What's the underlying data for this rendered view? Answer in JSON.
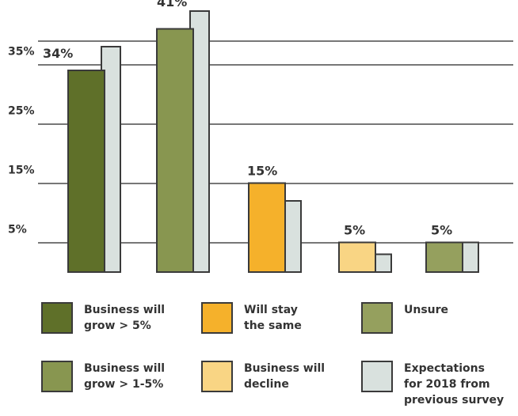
{
  "colors": {
    "grow_gt5": "#5f7029",
    "grow_1_5": "#889650",
    "same": "#f5b12b",
    "decline": "#f9d584",
    "unsure": "#95a05e",
    "previous": "#d9e1de",
    "outline": "#3a3a3a",
    "gridline": "#4a4a4a"
  },
  "chart_data": {
    "type": "bar",
    "yticks": [
      "35%",
      "25%",
      "15%",
      "5%"
    ],
    "ytick_values": [
      35,
      25,
      15,
      5
    ],
    "ylim": [
      0,
      46
    ],
    "grid": true,
    "groups": [
      {
        "name": "Business will grow > 5%",
        "current": 34,
        "previous": 38,
        "label": "34%",
        "color_key": "grow_gt5"
      },
      {
        "name": "Business will grow > 1-5%",
        "current": 41,
        "previous": 44,
        "label": "41%",
        "color_key": "grow_1_5"
      },
      {
        "name": "Will stay the same",
        "current": 15,
        "previous": 12,
        "label": "15%",
        "color_key": "same"
      },
      {
        "name": "Business will decline",
        "current": 5,
        "previous": 3,
        "label": "5%",
        "color_key": "decline"
      },
      {
        "name": "Unsure",
        "current": 5,
        "previous": 5,
        "label": "5%",
        "color_key": "unsure"
      }
    ]
  },
  "legend": [
    {
      "text": "Business will\ngrow > 5%",
      "color_key": "grow_gt5"
    },
    {
      "text": "Will stay\nthe same",
      "color_key": "same"
    },
    {
      "text": "Unsure",
      "color_key": "unsure"
    },
    {
      "text": "Business will\ngrow > 1-5%",
      "color_key": "grow_1_5"
    },
    {
      "text": "Business will\ndecline",
      "color_key": "decline"
    },
    {
      "text": "Expectations\nfor 2018 from\nprevious survey",
      "color_key": "previous"
    }
  ]
}
